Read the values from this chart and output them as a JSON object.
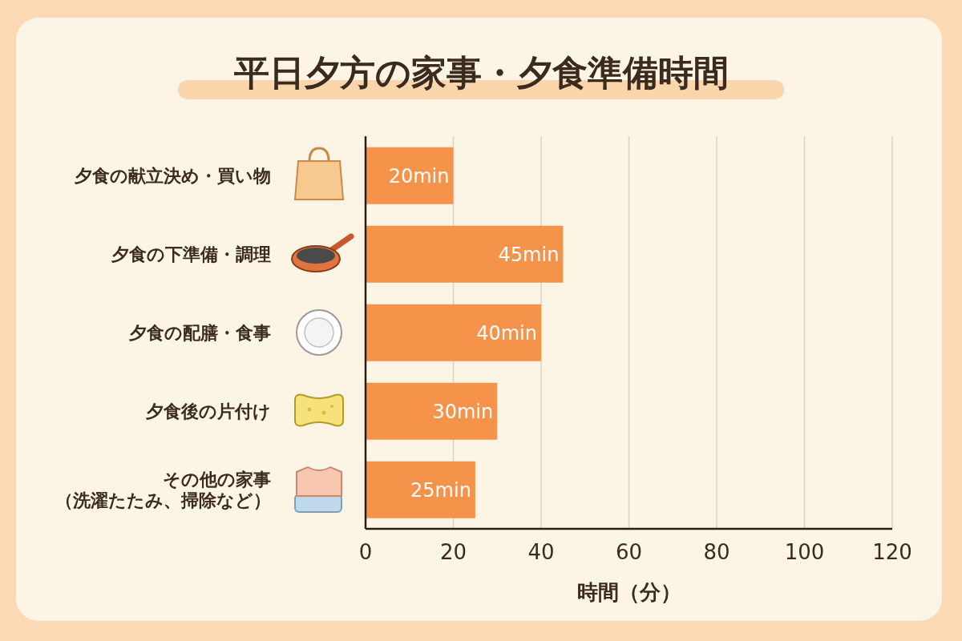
{
  "chart_data": {
    "type": "bar",
    "orientation": "horizontal",
    "title": "平日夕方の家事・夕食準備時間",
    "categories": [
      "夕食の献立決め・買い物",
      "夕食の下準備・調理",
      "夕食の配膳・食事",
      "夕食後の片付け",
      "その他の家事（洗濯たたみ、掃除など）"
    ],
    "values": [
      20,
      45,
      40,
      30,
      25
    ],
    "value_labels": [
      "20min",
      "45min",
      "40min",
      "30min",
      "25min"
    ],
    "color": "#f5934a",
    "xlabel": "時間（分）",
    "xlim": [
      0,
      120
    ],
    "xticks": [
      0,
      20,
      40,
      60,
      80,
      100,
      120
    ],
    "grid": "x"
  }
}
